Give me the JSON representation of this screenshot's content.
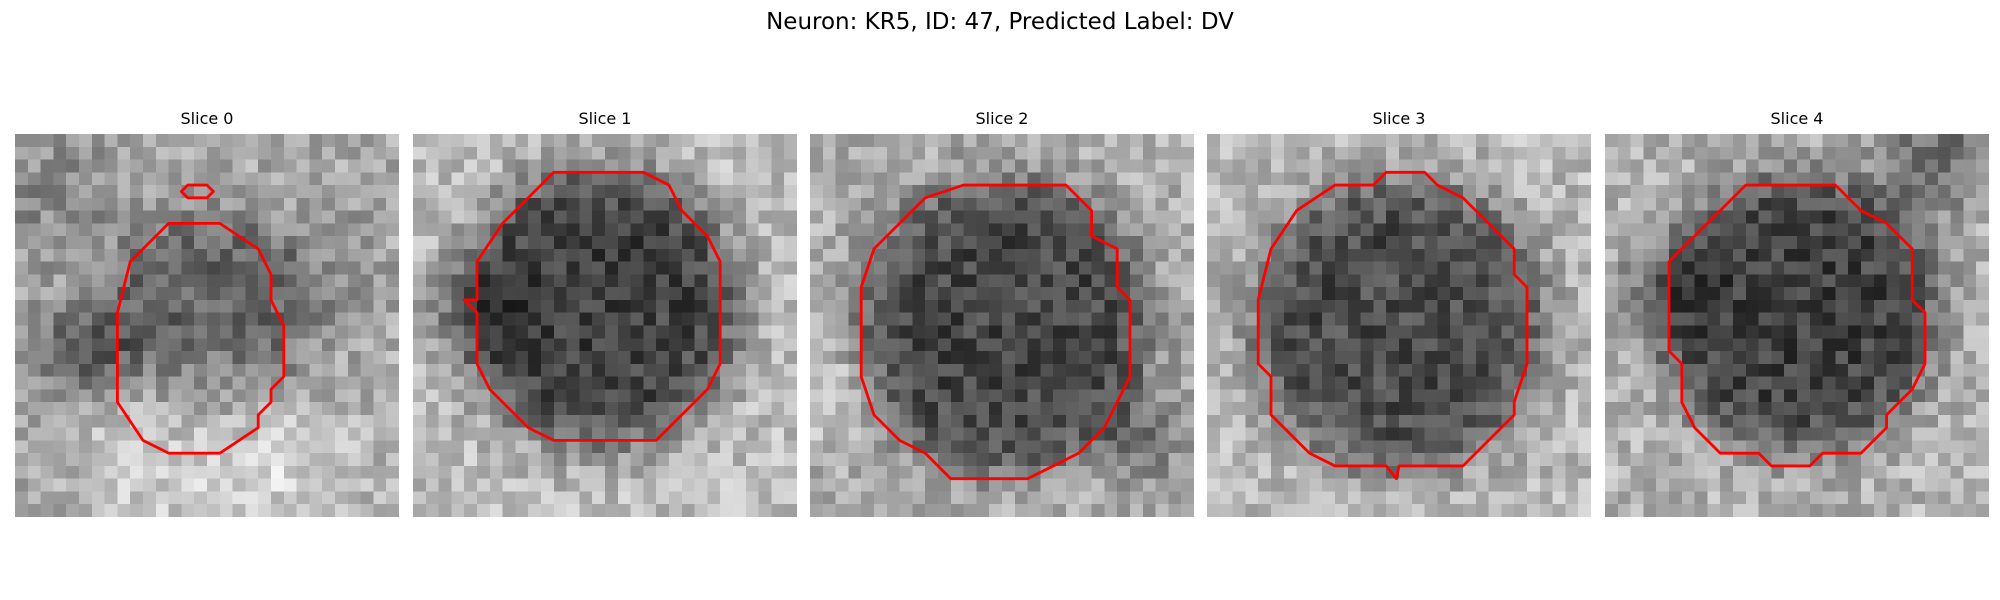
{
  "figure": {
    "title": "Neuron: KR5, ID: 47, Predicted Label: DV"
  },
  "colors": {
    "contour": "#ff0000",
    "background": "#ffffff"
  },
  "slices": [
    {
      "label": "Slice 0"
    },
    {
      "label": "Slice 1"
    },
    {
      "label": "Slice 2"
    },
    {
      "label": "Slice 3"
    },
    {
      "label": "Slice 4"
    }
  ]
}
